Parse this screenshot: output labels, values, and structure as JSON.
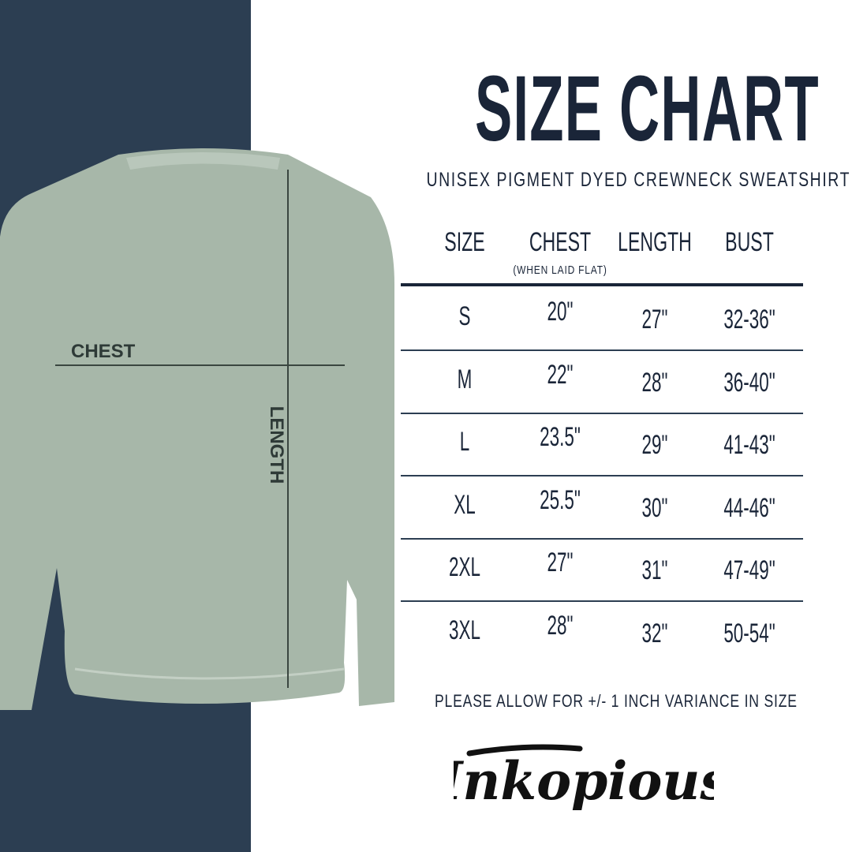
{
  "title": "SIZE CHART",
  "subtitle": "UNISEX PIGMENT DYED CREWNECK SWEATSHIRT",
  "table": {
    "headers": [
      "SIZE",
      "CHEST",
      "LENGTH",
      "BUST"
    ],
    "chest_note": "(WHEN LAID FLAT)",
    "rows": [
      [
        "S",
        "20\"",
        "27\"",
        "32-36\""
      ],
      [
        "M",
        "22\"",
        "28\"",
        "36-40\""
      ],
      [
        "L",
        "23.5\"",
        "29\"",
        "41-43\""
      ],
      [
        "XL",
        "25.5\"",
        "30\"",
        "44-46\""
      ],
      [
        "2XL",
        "27\"",
        "31\"",
        "47-49\""
      ],
      [
        "3XL",
        "28\"",
        "32\"",
        "50-54\""
      ]
    ]
  },
  "diagram": {
    "chest_label": "CHEST",
    "length_label": "LENGTH",
    "garment_color": "#a7b7a9"
  },
  "note": "PLEASE ALLOW FOR +/- 1 INCH VARIANCE IN SIZE",
  "brand": {
    "logo_text": "Inkopious"
  },
  "colors": {
    "navy": "#2c3e52",
    "text": "#1a2538"
  }
}
